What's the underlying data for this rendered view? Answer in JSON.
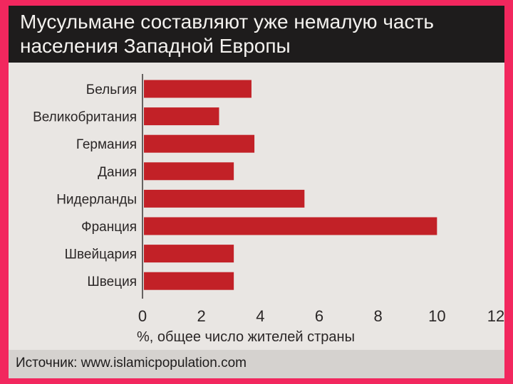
{
  "title_lines": [
    "Мусульмане составляют уже немалую часть",
    "населения Западной Европы"
  ],
  "source": "Источник: www.islamicpopulation.com",
  "colors": {
    "bar": "#c22127",
    "title_band": "#1e1c1c",
    "background": "#e9e6e3"
  },
  "chart_data": {
    "type": "bar",
    "orientation": "horizontal",
    "title": "Мусульмане составляют уже немалую часть населения Западной Европы",
    "categories": [
      "Бельгия",
      "Великобритания",
      "Германия",
      "Дания",
      "Нидерланды",
      "Франция",
      "Швейцария",
      "Швеция"
    ],
    "values": [
      3.7,
      2.6,
      3.8,
      3.1,
      5.5,
      10.0,
      3.1,
      3.1
    ],
    "xlabel": "%, общее число жителей страны",
    "ylabel": "",
    "xlim": [
      0,
      12
    ],
    "xticks": [
      "0",
      "2",
      "4",
      "6",
      "8",
      "10",
      "12"
    ],
    "grid": false,
    "legend": "none"
  }
}
